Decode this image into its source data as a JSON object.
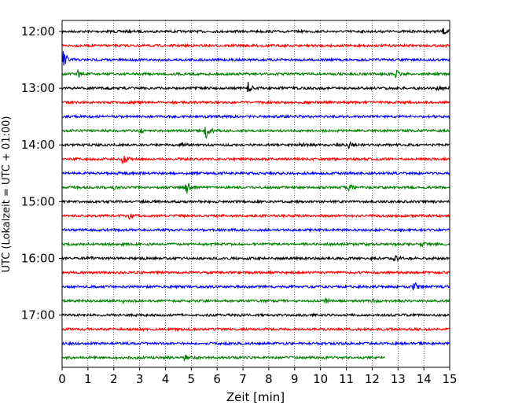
{
  "chart_data": {
    "type": "line",
    "title": "",
    "xlabel": "Zeit  [min]",
    "ylabel": "UTC (Lokalzeit = UTC + 01:00)",
    "xlim": [
      0,
      15
    ],
    "x_ticks": [
      0,
      1,
      2,
      3,
      4,
      5,
      6,
      7,
      8,
      9,
      10,
      11,
      12,
      13,
      14,
      15
    ],
    "x_tick_labels": [
      "0",
      "1",
      "2",
      "3",
      "4",
      "5",
      "6",
      "7",
      "8",
      "9",
      "10",
      "11",
      "12",
      "13",
      "14",
      "15"
    ],
    "grid": "vertical dotted lines at each minute",
    "y_tick_labels": [
      "12:00",
      "13:00",
      "14:00",
      "15:00",
      "16:00",
      "17:00"
    ],
    "colors": [
      "#000000",
      "#ff0000",
      "#0000ff",
      "#008000"
    ],
    "series": [
      {
        "start": "12:00",
        "color": "#000000",
        "end_min": 15,
        "events": [
          {
            "t": 14.75,
            "amp": 0.25
          }
        ]
      },
      {
        "start": "12:15",
        "color": "#ff0000",
        "end_min": 15,
        "events": []
      },
      {
        "start": "12:30",
        "color": "#0000ff",
        "end_min": 15,
        "events": [
          {
            "t": 0.05,
            "amp": 0.9
          }
        ]
      },
      {
        "start": "12:45",
        "color": "#008000",
        "end_min": 15,
        "events": [
          {
            "t": 0.6,
            "amp": 0.35
          },
          {
            "t": 12.9,
            "amp": 0.4
          }
        ]
      },
      {
        "start": "13:00",
        "color": "#000000",
        "end_min": 15,
        "events": [
          {
            "t": 7.2,
            "amp": 0.5
          },
          {
            "t": 14.5,
            "amp": 0.2
          }
        ]
      },
      {
        "start": "13:15",
        "color": "#ff0000",
        "end_min": 15,
        "events": []
      },
      {
        "start": "13:30",
        "color": "#0000ff",
        "end_min": 15,
        "events": []
      },
      {
        "start": "13:45",
        "color": "#008000",
        "end_min": 15,
        "events": [
          {
            "t": 5.55,
            "amp": 0.85
          },
          {
            "t": 3.0,
            "amp": 0.2
          }
        ]
      },
      {
        "start": "14:00",
        "color": "#000000",
        "end_min": 15,
        "events": [
          {
            "t": 9.2,
            "amp": 0.2
          },
          {
            "t": 11.1,
            "amp": 0.3
          },
          {
            "t": 4.6,
            "amp": 0.2
          }
        ]
      },
      {
        "start": "14:15",
        "color": "#ff0000",
        "end_min": 15,
        "events": [
          {
            "t": 2.35,
            "amp": 0.55
          }
        ]
      },
      {
        "start": "14:30",
        "color": "#0000ff",
        "end_min": 15,
        "events": []
      },
      {
        "start": "14:45",
        "color": "#008000",
        "end_min": 15,
        "events": [
          {
            "t": 4.8,
            "amp": 0.7
          },
          {
            "t": 11.1,
            "amp": 0.3
          },
          {
            "t": 2.0,
            "amp": 0.15
          }
        ]
      },
      {
        "start": "15:00",
        "color": "#000000",
        "end_min": 15,
        "events": []
      },
      {
        "start": "15:15",
        "color": "#ff0000",
        "end_min": 15,
        "events": [
          {
            "t": 2.6,
            "amp": 0.2
          }
        ]
      },
      {
        "start": "15:30",
        "color": "#0000ff",
        "end_min": 15,
        "events": []
      },
      {
        "start": "15:45",
        "color": "#008000",
        "end_min": 15,
        "events": [
          {
            "t": 13.9,
            "amp": 0.2
          }
        ]
      },
      {
        "start": "16:00",
        "color": "#000000",
        "end_min": 15,
        "events": [
          {
            "t": 11.8,
            "amp": 0.55
          },
          {
            "t": 12.85,
            "amp": 0.4
          },
          {
            "t": 1.0,
            "amp": 0.2
          }
        ]
      },
      {
        "start": "16:15",
        "color": "#ff0000",
        "end_min": 15,
        "events": []
      },
      {
        "start": "16:30",
        "color": "#0000ff",
        "end_min": 15,
        "events": [
          {
            "t": 13.6,
            "amp": 0.5
          }
        ]
      },
      {
        "start": "16:45",
        "color": "#008000",
        "end_min": 15,
        "events": [
          {
            "t": 2.35,
            "amp": 0.2
          },
          {
            "t": 11.95,
            "amp": 0.2
          },
          {
            "t": 10.2,
            "amp": 0.15
          }
        ]
      },
      {
        "start": "17:00",
        "color": "#000000",
        "end_min": 15,
        "events": []
      },
      {
        "start": "17:15",
        "color": "#ff0000",
        "end_min": 15,
        "events": []
      },
      {
        "start": "17:30",
        "color": "#0000ff",
        "end_min": 15,
        "events": []
      },
      {
        "start": "17:45",
        "color": "#008000",
        "end_min": 12.5,
        "events": [
          {
            "t": 4.75,
            "amp": 0.25
          }
        ]
      }
    ]
  }
}
